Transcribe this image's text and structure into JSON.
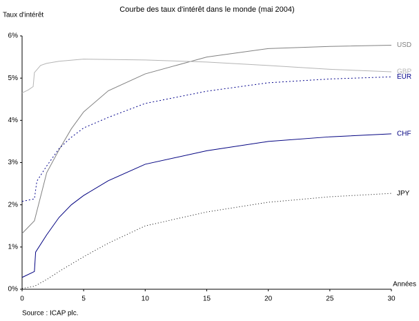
{
  "chart_data": {
    "type": "line",
    "title": "Courbe des taux d'intérêt dans le monde (mai 2004)",
    "y_label": "Taux d'intérêt",
    "x_label": "Années",
    "source": "Source : ICAP plc.",
    "xlim": [
      0,
      30
    ],
    "xticks": [
      0,
      5,
      10,
      15,
      20,
      25,
      30
    ],
    "ylim": [
      0,
      6
    ],
    "yticks": [
      {
        "value": 0,
        "label": "0%"
      },
      {
        "value": 1,
        "label": "1%"
      },
      {
        "value": 2,
        "label": "2%"
      },
      {
        "value": 3,
        "label": "3%"
      },
      {
        "value": 4,
        "label": "4%"
      },
      {
        "value": 5,
        "label": "5%"
      },
      {
        "value": 6,
        "label": "6%"
      }
    ],
    "series": [
      {
        "name": "USD",
        "color": "#808080",
        "dash": "none",
        "x": [
          0,
          1,
          2,
          3,
          4,
          5,
          7,
          10,
          15,
          20,
          25,
          30
        ],
        "values": [
          1.32,
          1.62,
          2.76,
          3.3,
          3.8,
          4.2,
          4.7,
          5.1,
          5.5,
          5.7,
          5.75,
          5.78
        ]
      },
      {
        "name": "GBP",
        "color": "#b4b4b4",
        "dash": "none",
        "x": [
          0,
          0.5,
          0.9,
          1,
          1.5,
          2,
          3,
          5,
          10,
          15,
          20,
          25,
          30
        ],
        "values": [
          4.65,
          4.72,
          4.8,
          5.13,
          5.3,
          5.35,
          5.4,
          5.45,
          5.43,
          5.38,
          5.3,
          5.21,
          5.15
        ]
      },
      {
        "name": "EUR",
        "color": "#00008b",
        "dash": "2,3",
        "x": [
          0,
          1,
          1.2,
          2,
          3,
          4,
          5,
          7,
          10,
          15,
          20,
          25,
          30
        ],
        "values": [
          2.08,
          2.14,
          2.56,
          2.92,
          3.33,
          3.6,
          3.82,
          4.07,
          4.4,
          4.69,
          4.89,
          4.98,
          5.03
        ]
      },
      {
        "name": "CHF",
        "color": "#000080",
        "dash": "none",
        "x": [
          0,
          1,
          1.1,
          2,
          3,
          4,
          5,
          7,
          10,
          15,
          20,
          25,
          30
        ],
        "values": [
          0.28,
          0.42,
          0.88,
          1.29,
          1.7,
          2.0,
          2.22,
          2.57,
          2.96,
          3.28,
          3.5,
          3.61,
          3.68
        ]
      },
      {
        "name": "JPY",
        "color": "#000000",
        "dash": "1,3",
        "x": [
          0,
          1,
          2,
          3,
          5,
          7,
          10,
          15,
          20,
          25,
          30
        ],
        "values": [
          0.02,
          0.07,
          0.23,
          0.42,
          0.77,
          1.09,
          1.5,
          1.83,
          2.06,
          2.19,
          2.27
        ]
      }
    ]
  }
}
